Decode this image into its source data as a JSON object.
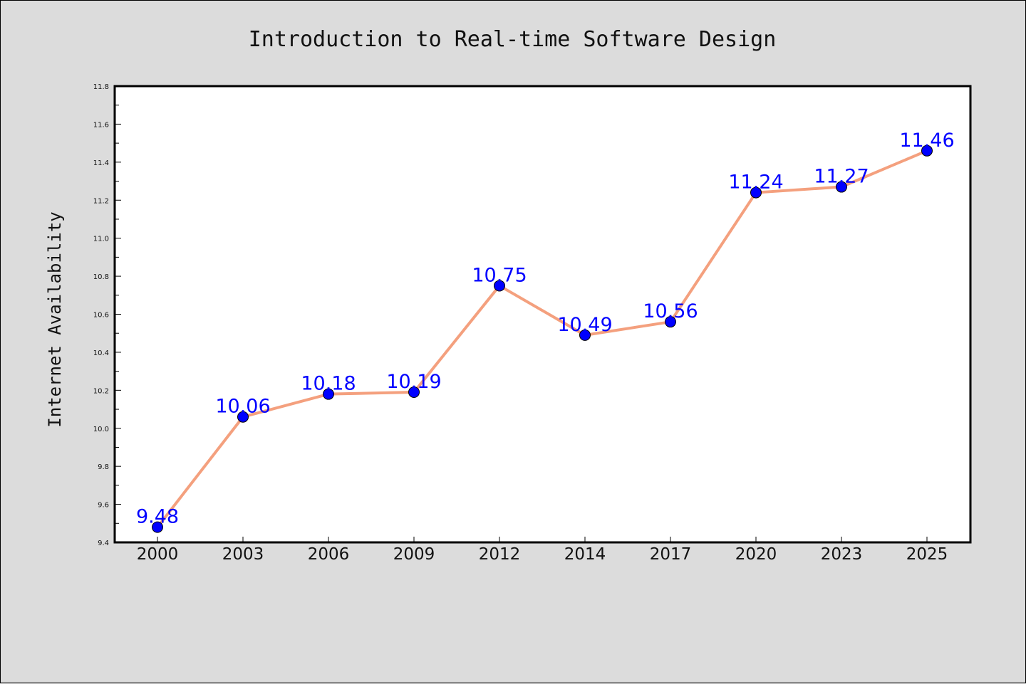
{
  "chart_data": {
    "type": "line",
    "title": "Introduction to Real-time Software Design",
    "xlabel": "",
    "ylabel": "Internet Availability",
    "categories": [
      "2000",
      "2003",
      "2006",
      "2009",
      "2012",
      "2014",
      "2017",
      "2020",
      "2023",
      "2025"
    ],
    "series": [
      {
        "values": [
          9.48,
          10.06,
          10.18,
          10.19,
          10.75,
          10.49,
          10.56,
          11.24,
          11.27,
          11.46
        ],
        "data_labels": [
          "9.48",
          "10.06",
          "10.18",
          "10.19",
          "10.75",
          "10.49",
          "10.56",
          "11.24",
          "11.27",
          "11.46"
        ],
        "line_color": "#f4a07e",
        "marker_color": "#0000ff"
      }
    ],
    "ylim": [
      9.4,
      11.8
    ],
    "yticks": [
      "9.4",
      "9.6",
      "9.8",
      "10.0",
      "10.2",
      "10.4",
      "10.6",
      "10.8",
      "11.0",
      "11.2",
      "11.4",
      "11.6",
      "11.8"
    ],
    "grid": false,
    "legend": "none"
  }
}
